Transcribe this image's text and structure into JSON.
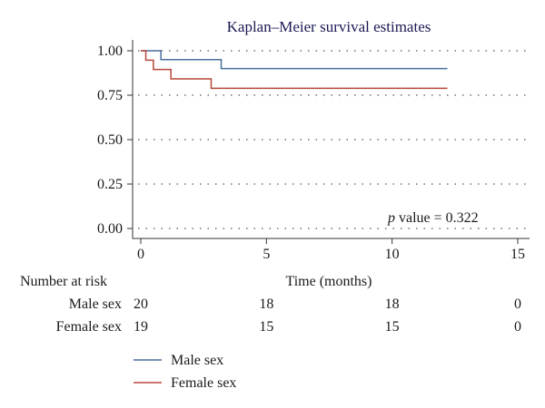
{
  "chart_data": {
    "type": "line",
    "title": "Kaplan–Meier survival estimates",
    "xlabel": "Time (months)",
    "ylabel": "",
    "xlim": [
      0,
      15
    ],
    "ylim": [
      0,
      1
    ],
    "xticks": [
      "0",
      "5",
      "10",
      "15"
    ],
    "yticks": [
      "0.00",
      "0.25",
      "0.50",
      "0.75",
      "1.00"
    ],
    "grid": "horizontal dotted",
    "annotation": {
      "italic": "p",
      "rest": " value = 0.322"
    },
    "series": [
      {
        "name": "Male sex",
        "color": "#4a6f9e",
        "step": true,
        "x": [
          0,
          0.8,
          3.2,
          12.2
        ],
        "y": [
          1.0,
          0.95,
          0.9,
          0.9
        ]
      },
      {
        "name": "Female sex",
        "color": "#b8473a",
        "step": true,
        "x": [
          0,
          0.2,
          0.5,
          1.2,
          2.8,
          12.2
        ],
        "y": [
          1.0,
          0.947,
          0.895,
          0.842,
          0.789,
          0.789
        ]
      }
    ],
    "risk_table": {
      "header": "Number at risk",
      "times": [
        0,
        5,
        10,
        15
      ],
      "rows": [
        {
          "label": "Male sex",
          "values": [
            "20",
            "18",
            "18",
            "0"
          ]
        },
        {
          "label": "Female sex",
          "values": [
            "19",
            "15",
            "15",
            "0"
          ]
        }
      ]
    },
    "legend_position": "bottom-left"
  }
}
